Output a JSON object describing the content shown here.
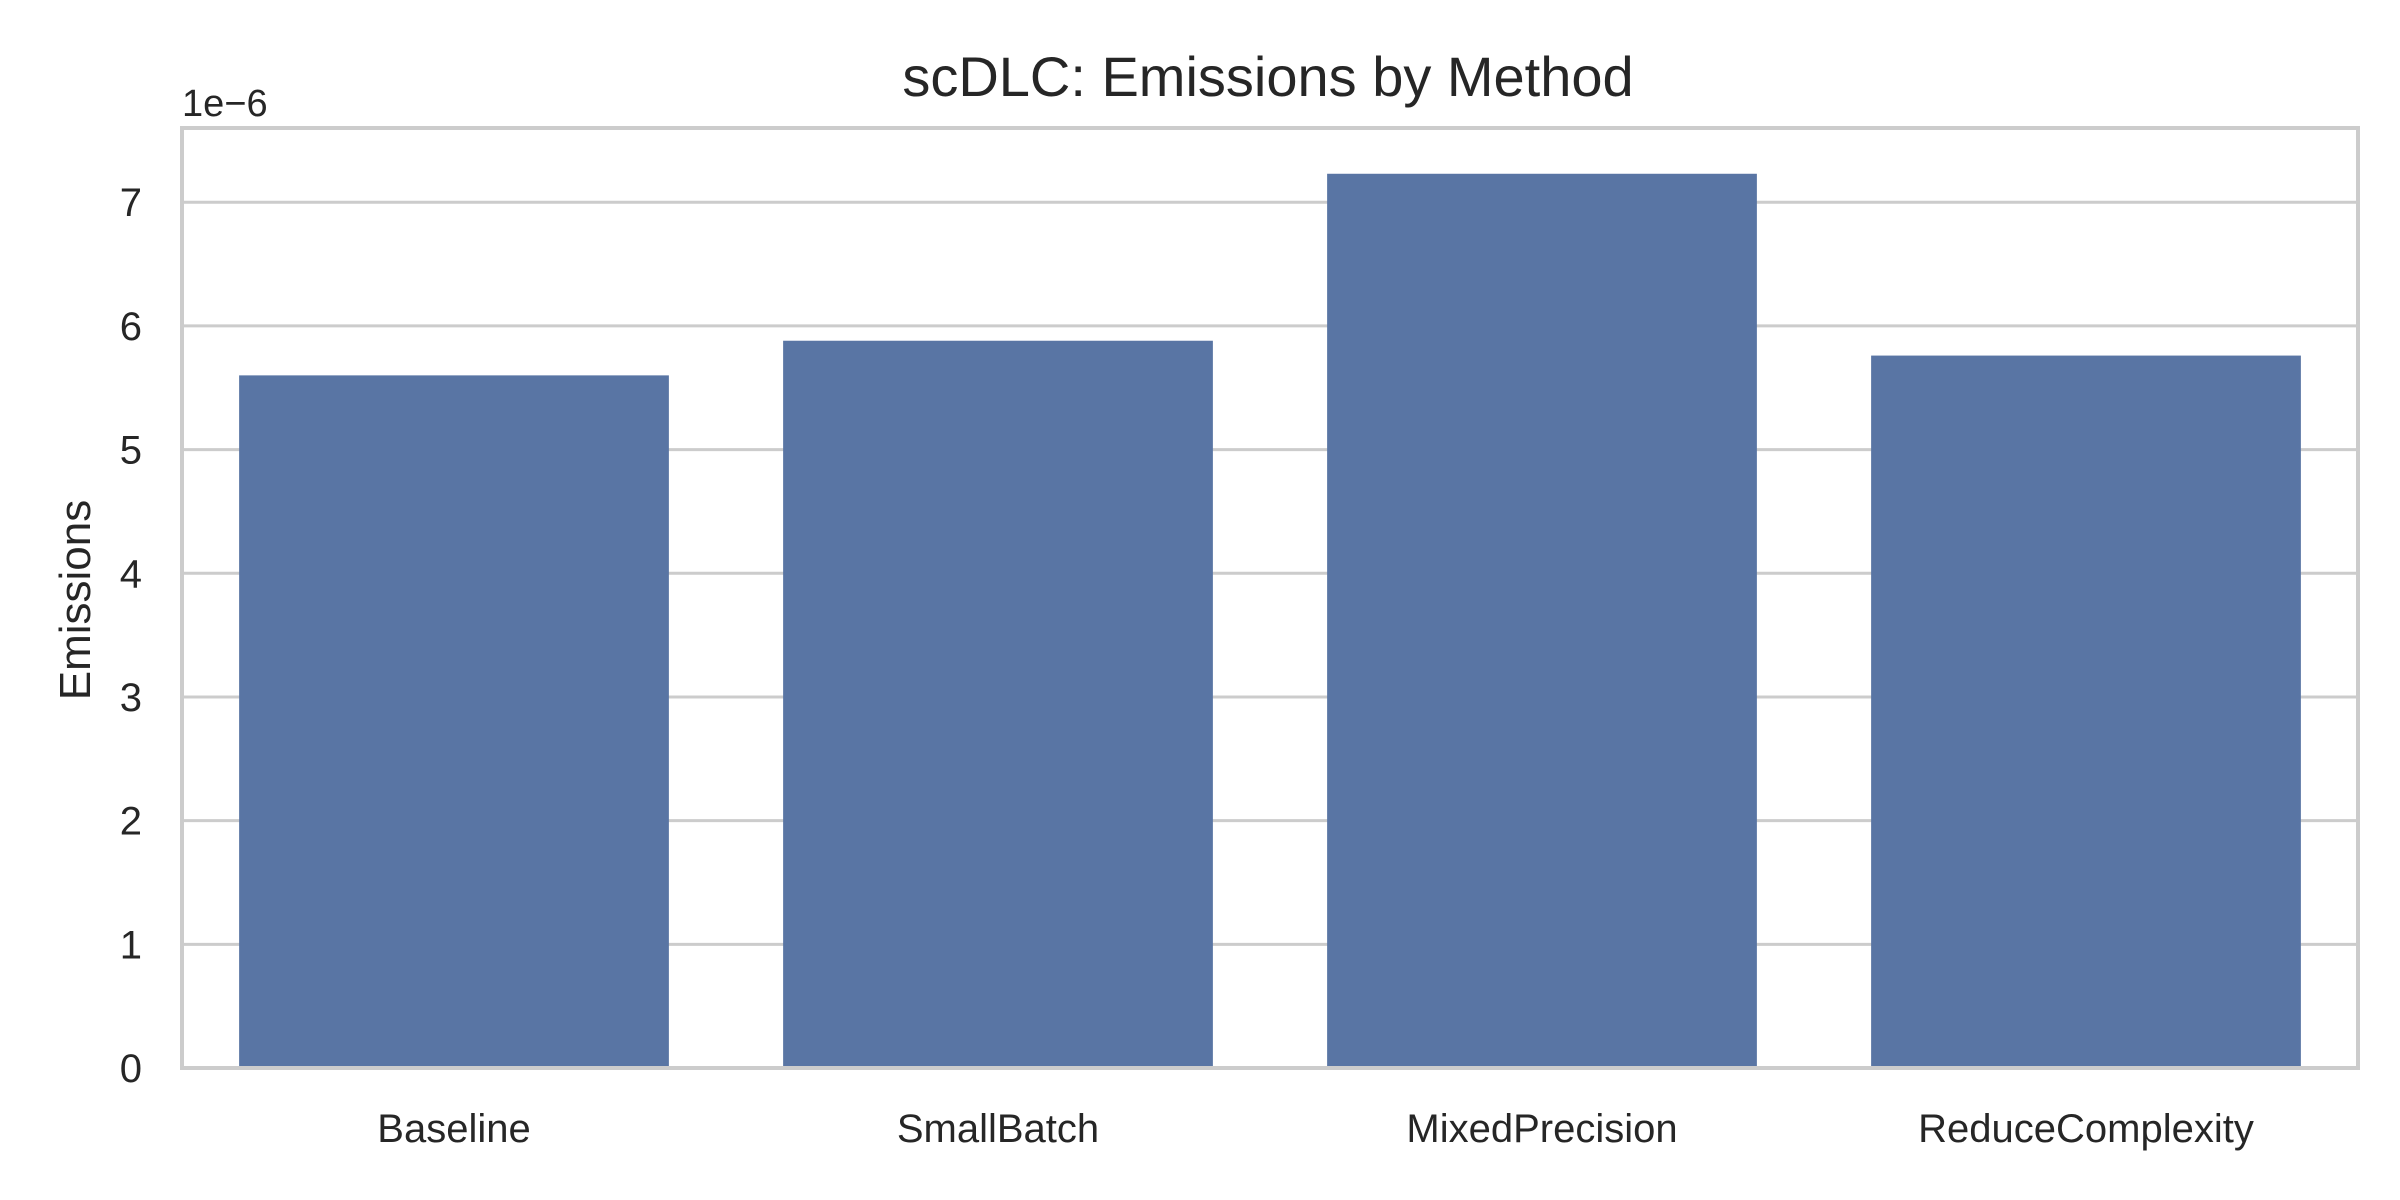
{
  "chart_data": {
    "type": "bar",
    "title": "scDLC: Emissions by Method",
    "xlabel": "",
    "ylabel": "Emissions",
    "y_offset_label": "1e−6",
    "y_scale": 1e-06,
    "categories": [
      "Baseline",
      "SmallBatch",
      "MixedPrecision",
      "ReduceComplexity"
    ],
    "values": [
      5.6e-06,
      5.88e-06,
      7.23e-06,
      5.76e-06
    ],
    "ylim": [
      0,
      7.6e-06
    ],
    "yticks": [
      0,
      1,
      2,
      3,
      4,
      5,
      6,
      7
    ],
    "grid": true,
    "bar_color": "#5975a4"
  }
}
